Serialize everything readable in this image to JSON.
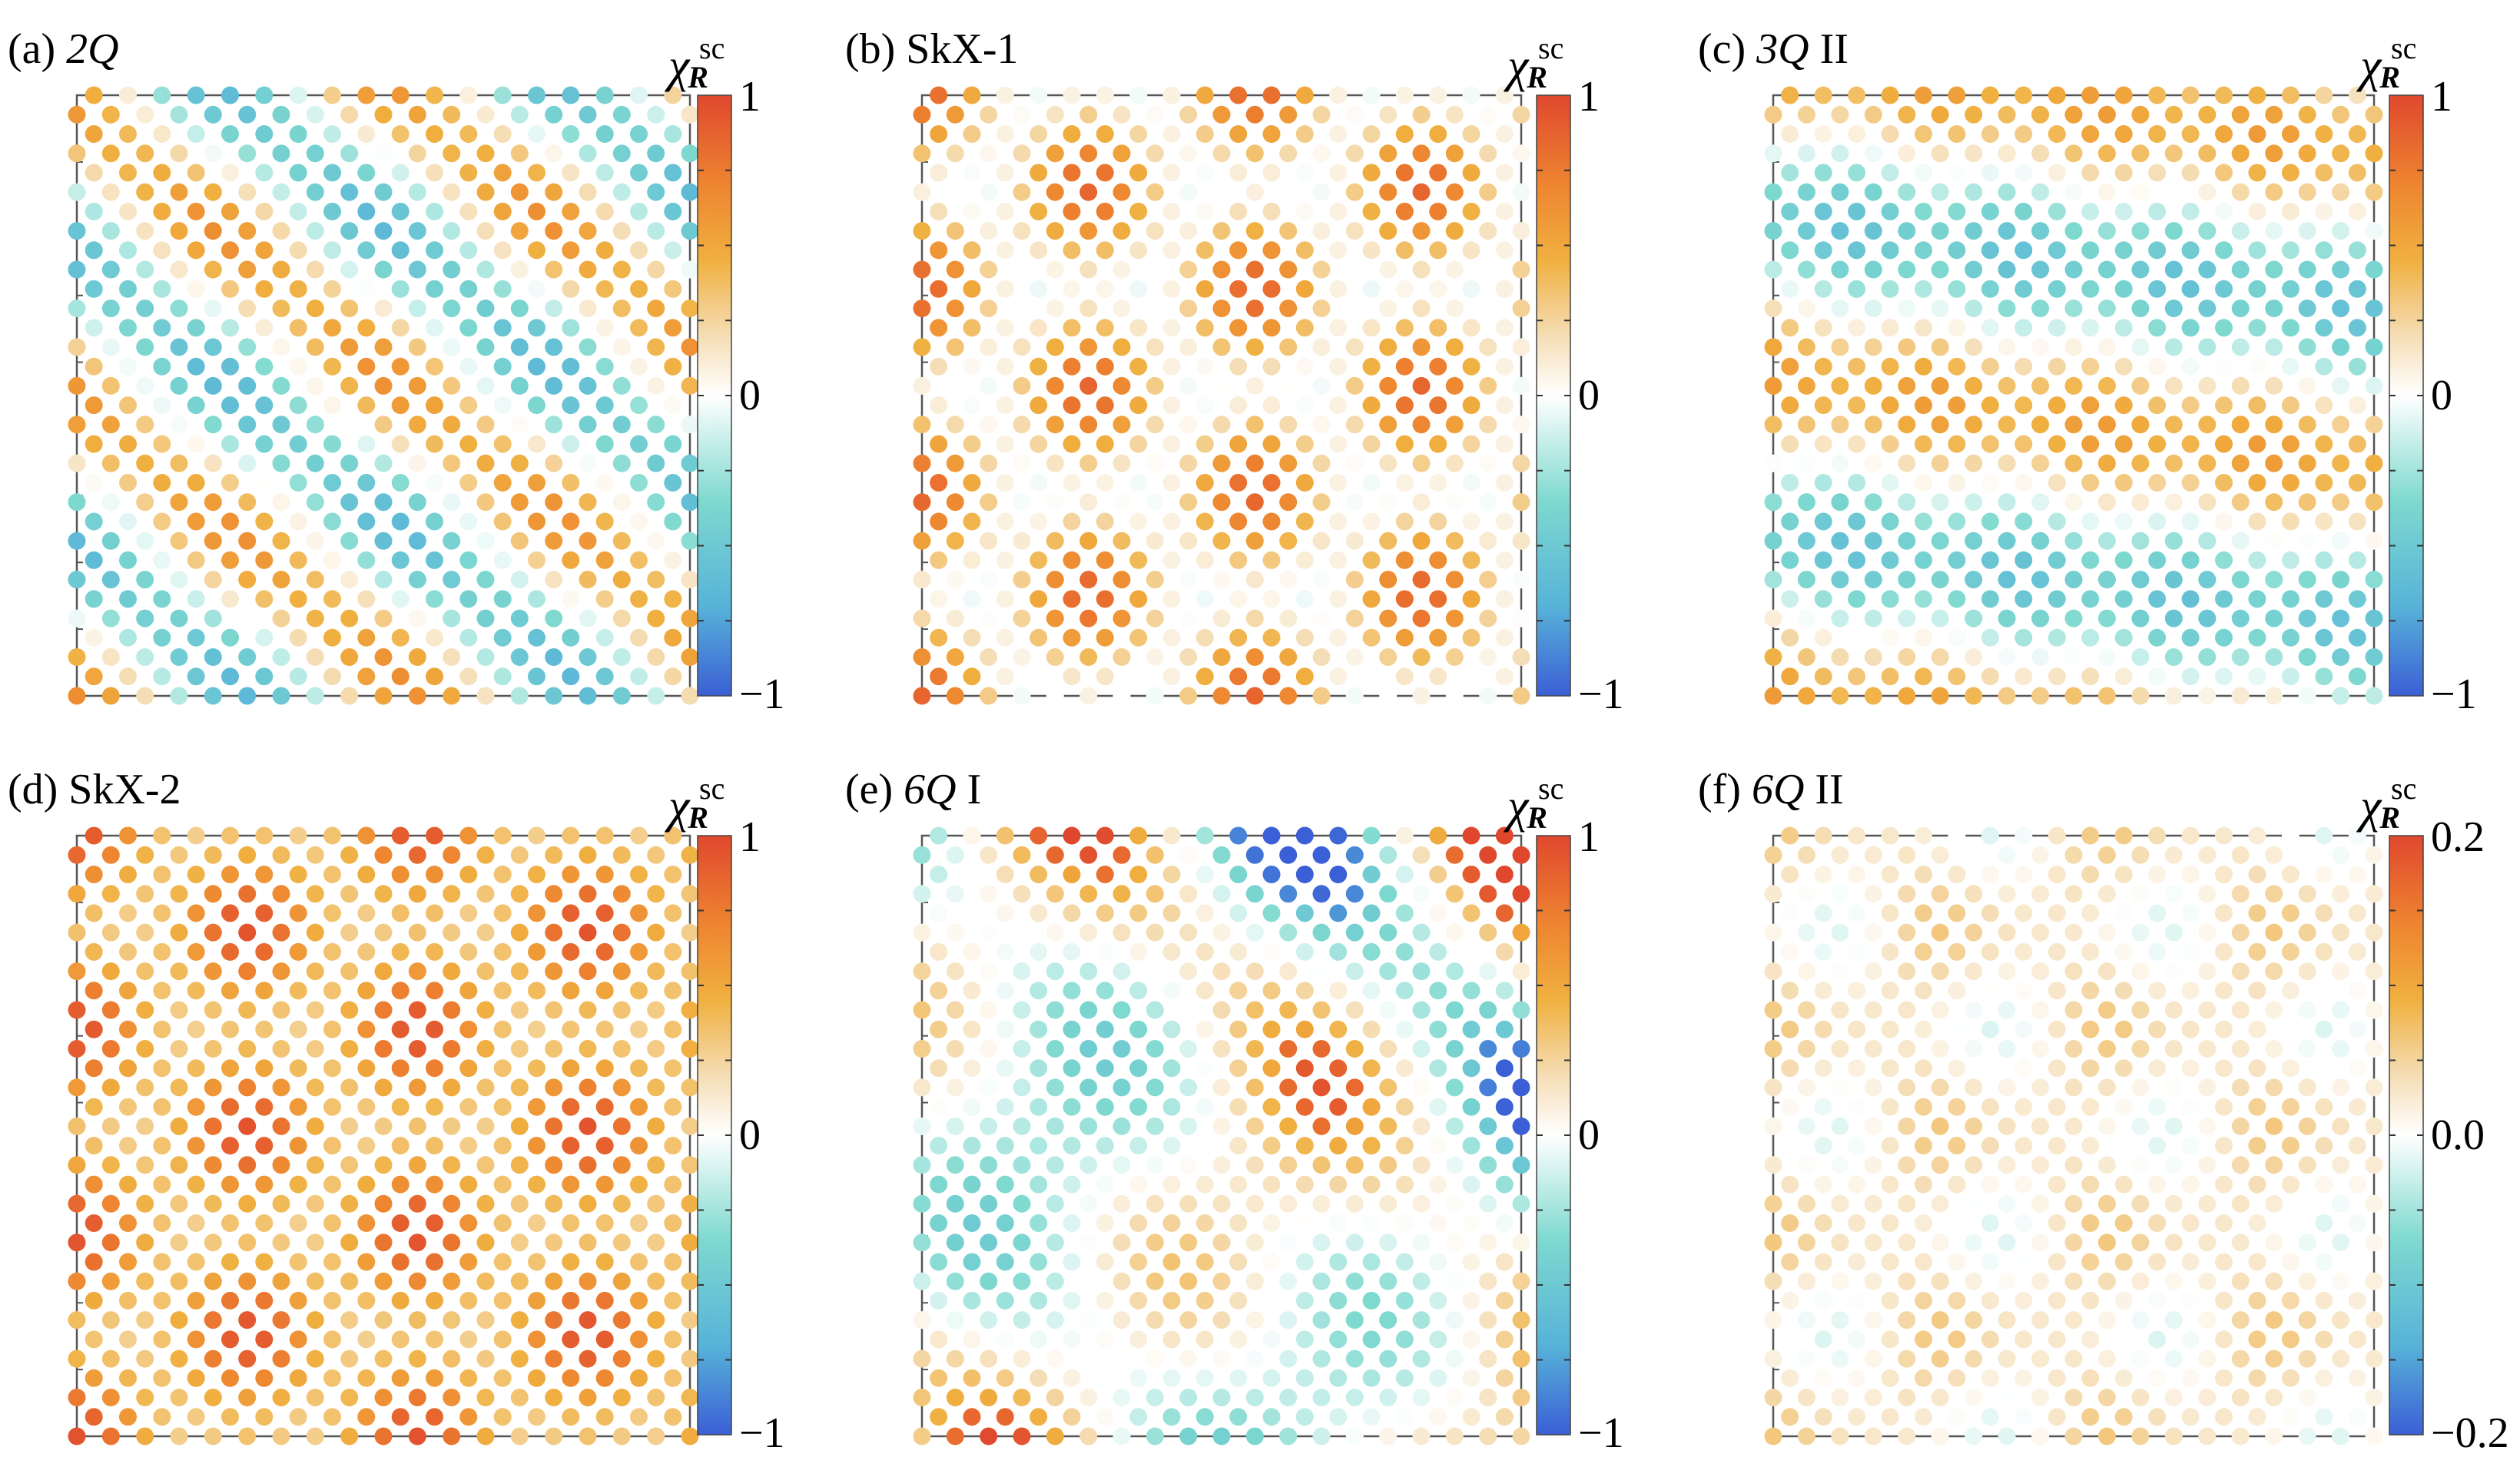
{
  "figure": {
    "background": "#ffffff",
    "colormap": [
      "#3b5fd6",
      "#57b3d8",
      "#7ed9cf",
      "#ffffff",
      "#f5ddb4",
      "#f0b040",
      "#ee8530",
      "#e0482e"
    ]
  },
  "chart_data": [
    {
      "type": "heatmap",
      "id": "a",
      "title": "(a) 2Q",
      "title_prefix": "(a) ",
      "title_italic": "2Q",
      "title_suffix": "",
      "pattern": "2Q",
      "colorbar": {
        "name": "χ",
        "sup": "sc",
        "sub": "R",
        "range": [
          -1,
          1
        ],
        "ticks": [
          "1",
          "0",
          "−1"
        ],
        "tick_values": [
          1,
          0,
          -1
        ]
      }
    },
    {
      "type": "heatmap",
      "id": "b",
      "title": "(b) SkX-1",
      "title_prefix": "(b) SkX-1",
      "title_italic": "",
      "title_suffix": "",
      "pattern": "SkX-1",
      "colorbar": {
        "name": "χ",
        "sup": "sc",
        "sub": "R",
        "range": [
          -1,
          1
        ],
        "ticks": [
          "1",
          "0",
          "−1"
        ],
        "tick_values": [
          1,
          0,
          -1
        ]
      }
    },
    {
      "type": "heatmap",
      "id": "c",
      "title": "(c) 3Q II",
      "title_prefix": "(c) ",
      "title_italic": "3Q",
      "title_suffix": " II",
      "pattern": "3Q-II",
      "colorbar": {
        "name": "χ",
        "sup": "sc",
        "sub": "R",
        "range": [
          -1,
          1
        ],
        "ticks": [
          "1",
          "0",
          "−1"
        ],
        "tick_values": [
          1,
          0,
          -1
        ]
      }
    },
    {
      "type": "heatmap",
      "id": "d",
      "title": "(d) SkX-2",
      "title_prefix": "(d) SkX-2",
      "title_italic": "",
      "title_suffix": "",
      "pattern": "SkX-2",
      "colorbar": {
        "name": "χ",
        "sup": "sc",
        "sub": "R",
        "range": [
          -1,
          1
        ],
        "ticks": [
          "1",
          "0",
          "−1"
        ],
        "tick_values": [
          1,
          0,
          -1
        ]
      }
    },
    {
      "type": "heatmap",
      "id": "e",
      "title": "(e) 6Q I",
      "title_prefix": "(e) ",
      "title_italic": "6Q",
      "title_suffix": " I",
      "pattern": "6Q-I",
      "colorbar": {
        "name": "χ",
        "sup": "sc",
        "sub": "R",
        "range": [
          -1,
          1
        ],
        "ticks": [
          "1",
          "0",
          "−1"
        ],
        "tick_values": [
          1,
          0,
          -1
        ]
      }
    },
    {
      "type": "heatmap",
      "id": "f",
      "title": "(f) 6Q II",
      "title_prefix": "(f) ",
      "title_italic": "6Q",
      "title_suffix": " II",
      "pattern": "6Q-II",
      "colorbar": {
        "name": "χ",
        "sup": "sc",
        "sub": "R",
        "range": [
          -0.2,
          0.2
        ],
        "ticks": [
          "0.2",
          "0.0",
          "−0.2"
        ],
        "tick_values": [
          0.2,
          0.0,
          -0.2
        ]
      }
    }
  ]
}
